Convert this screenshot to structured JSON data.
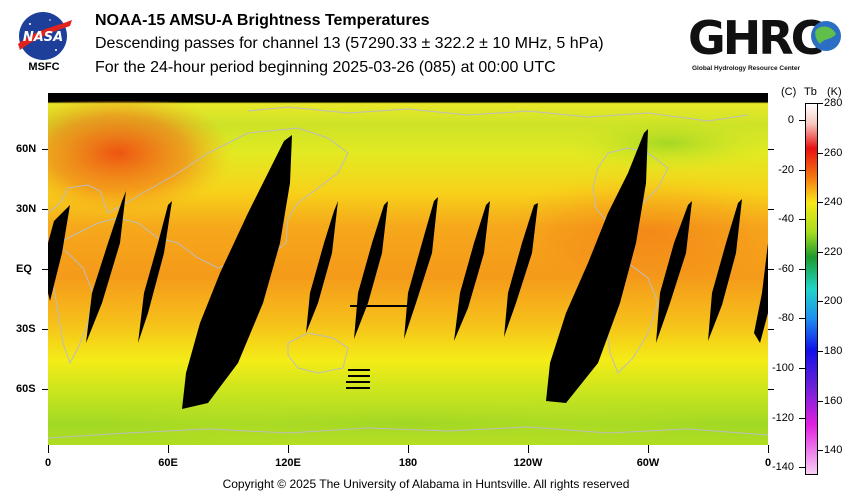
{
  "header": {
    "title": "NOAA-15 AMSU-A Brightness Temperatures",
    "line2": "Descending passes for channel 13 (57290.33 ± 322.2 ± 10 MHz, 5 hPa)",
    "line3": "For the 24-hour period beginning 2025-03-26 (085) at 00:00 UTC"
  },
  "logos": {
    "nasa": {
      "text": "NASA",
      "caption": "MSFC"
    },
    "ghrc": {
      "text": "GHRC",
      "caption": "Global Hydrology Resource Center"
    }
  },
  "map": {
    "latitude_labels": [
      {
        "lat": 60,
        "label": "60N"
      },
      {
        "lat": 30,
        "label": "30N"
      },
      {
        "lat": 0,
        "label": "EQ"
      },
      {
        "lat": -30,
        "label": "30S"
      },
      {
        "lat": -60,
        "label": "60S"
      }
    ],
    "longitude_labels": [
      {
        "lon": 0,
        "label": "0"
      },
      {
        "lon": 60,
        "label": "60E"
      },
      {
        "lon": 120,
        "label": "120E"
      },
      {
        "lon": 180,
        "label": "180"
      },
      {
        "lon": 240,
        "label": "120W"
      },
      {
        "lon": 300,
        "label": "60W"
      },
      {
        "lon": 360,
        "label": "0"
      }
    ],
    "lat_range": [
      -88,
      88
    ],
    "lon_range": [
      0,
      360
    ],
    "background_colors": {
      "warm": "#f25d10",
      "orange": "#f6a31a",
      "yellow": "#f2ef16",
      "green": "#a4dd1e",
      "no_data": "#000000",
      "coast": "#b8b8b8"
    }
  },
  "colorbar": {
    "unit_c": "(C)",
    "unit_tb": "Tb",
    "unit_k": "(K)",
    "range_k": [
      130,
      280
    ],
    "celsius_ticks": [
      "0",
      "-20",
      "-40",
      "-60",
      "-80",
      "-100",
      "-120",
      "-140"
    ],
    "celsius_values": [
      0,
      -20,
      -40,
      -60,
      -80,
      -100,
      -120,
      -140
    ],
    "kelvin_ticks": [
      "280",
      "260",
      "240",
      "220",
      "200",
      "180",
      "160",
      "140"
    ],
    "kelvin_values": [
      280,
      260,
      240,
      220,
      200,
      180,
      160,
      140
    ],
    "stops": [
      {
        "k": 280,
        "color": "#ffffff"
      },
      {
        "k": 272,
        "color": "#f7c8c0"
      },
      {
        "k": 262,
        "color": "#e81010"
      },
      {
        "k": 250,
        "color": "#f57a10"
      },
      {
        "k": 240,
        "color": "#f8e818"
      },
      {
        "k": 228,
        "color": "#a6dc1e"
      },
      {
        "k": 218,
        "color": "#1c9a2c"
      },
      {
        "k": 205,
        "color": "#20d4c8"
      },
      {
        "k": 193,
        "color": "#1e8ef0"
      },
      {
        "k": 180,
        "color": "#1010e8"
      },
      {
        "k": 165,
        "color": "#7020d8"
      },
      {
        "k": 150,
        "color": "#e020e0"
      },
      {
        "k": 130,
        "color": "#f8d0f4"
      }
    ]
  },
  "footer": {
    "copyright": "Copyright © 2025 The University of Alabama in Huntsville.  All rights reserved"
  }
}
